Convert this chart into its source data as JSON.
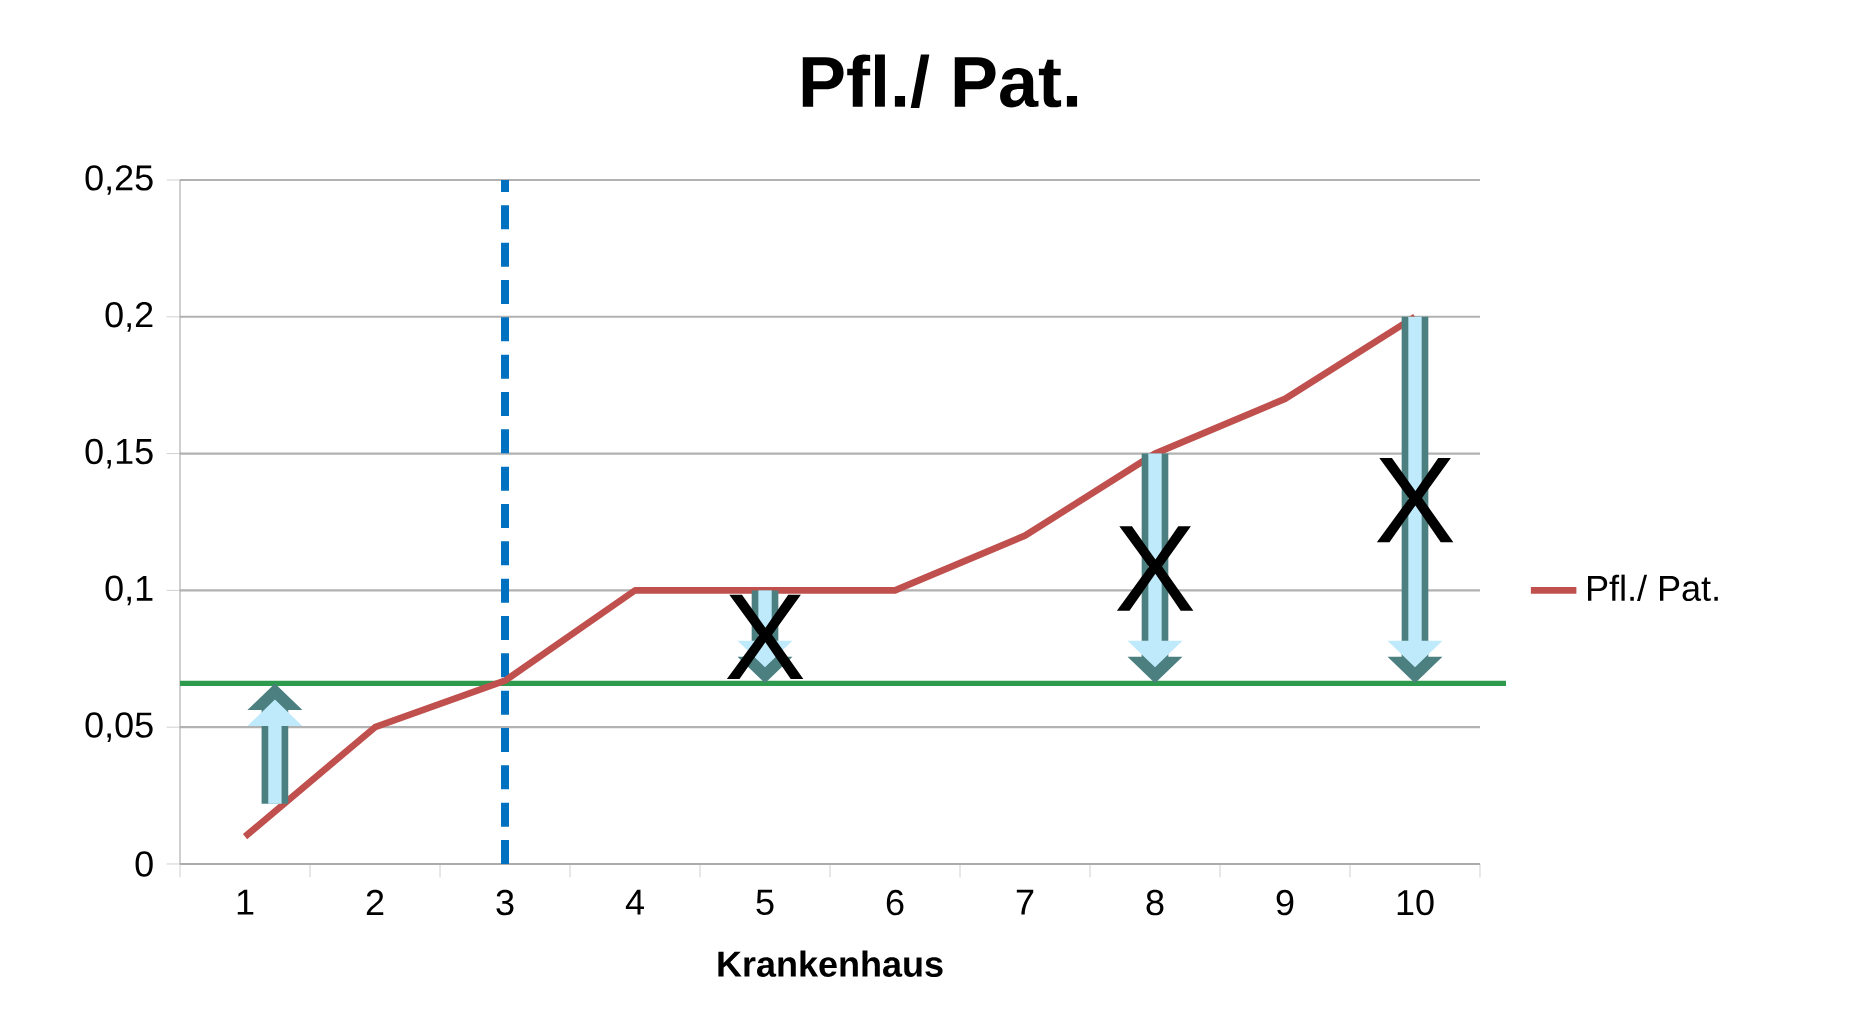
{
  "chart_data": {
    "type": "line",
    "title": "Pfl./ Pat.",
    "xlabel": "Krankenhaus",
    "x": [
      1,
      2,
      3,
      4,
      5,
      6,
      7,
      8,
      9,
      10
    ],
    "series": [
      {
        "name": "Pfl./ Pat.",
        "color": "#c0504d",
        "values": [
          0.01,
          0.05,
          0.067,
          0.1,
          0.1,
          0.1,
          0.12,
          0.15,
          0.17,
          0.2
        ]
      }
    ],
    "xlim": [
      0.5,
      10.5
    ],
    "xticks": [
      1,
      2,
      3,
      4,
      5,
      6,
      7,
      8,
      9,
      10
    ],
    "ylim": [
      0,
      0.25
    ],
    "yticks": [
      {
        "value": 0,
        "label": "0"
      },
      {
        "value": 0.05,
        "label": "0,05"
      },
      {
        "value": 0.1,
        "label": "0,1"
      },
      {
        "value": 0.15,
        "label": "0,15"
      },
      {
        "value": 0.2,
        "label": "0,2"
      },
      {
        "value": 0.25,
        "label": "0,25"
      }
    ],
    "grid": "y",
    "legend": "right",
    "marker": "none",
    "line_style": "solid",
    "ref_lines": [
      {
        "axis": "y",
        "value": 0.066,
        "color": "#2e9a4e",
        "line_style": "solid"
      },
      {
        "axis": "x",
        "value": 3,
        "color": "#0070c0",
        "line_style": "dashed"
      }
    ],
    "annotations": [
      {
        "text": "X",
        "x": 5,
        "y": 0.1
      },
      {
        "text": "X",
        "x": 8,
        "y": 0.15
      },
      {
        "text": "X",
        "x": 10,
        "y": 0.2
      }
    ]
  }
}
